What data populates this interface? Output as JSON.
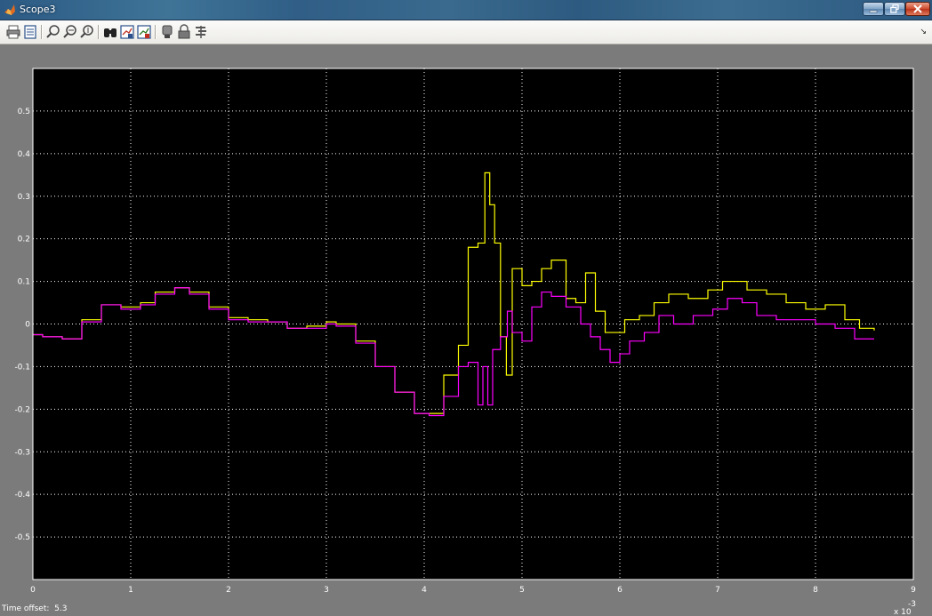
{
  "window": {
    "title": "Scope3"
  },
  "toolbar": {
    "buttons": [
      {
        "name": "print-button",
        "icon": "printer-icon"
      },
      {
        "name": "parameters-button",
        "icon": "parameters-icon"
      },
      {
        "name": "zoom-button",
        "icon": "zoom-icon"
      },
      {
        "name": "zoom-x-button",
        "icon": "zoom-x-icon"
      },
      {
        "name": "zoom-y-button",
        "icon": "zoom-y-icon"
      },
      {
        "name": "autoscale-button",
        "icon": "binoculars-icon"
      },
      {
        "name": "save-axes-button",
        "icon": "save-axes-icon"
      },
      {
        "name": "restore-axes-button",
        "icon": "restore-axes-icon"
      },
      {
        "name": "floating-scope-button",
        "icon": "floating-scope-icon"
      },
      {
        "name": "lock-axes-button",
        "icon": "lock-icon"
      },
      {
        "name": "signal-selection-button",
        "icon": "signal-selection-icon"
      }
    ],
    "corner_glyph": "↘"
  },
  "status": {
    "time_offset_label": "Time offset:",
    "time_offset_value": "5.3"
  },
  "colors": {
    "plot_background": "#000000",
    "frame_background": "#7b7b7b",
    "grid": "#ffffff",
    "series_1": "#ffff00",
    "series_2": "#ff00ff"
  },
  "chart_data": {
    "type": "line",
    "title": "",
    "xlabel": "",
    "ylabel": "",
    "x_multiplier_label": "x 10",
    "x_multiplier_exponent": "-3",
    "xlim": [
      0,
      9
    ],
    "ylim": [
      -0.6,
      0.6
    ],
    "grid": true,
    "x_ticks": [
      "0",
      "1",
      "2",
      "3",
      "4",
      "5",
      "6",
      "7",
      "8",
      "9"
    ],
    "y_ticks": [
      "0.5",
      "0.4",
      "0.3",
      "0.2",
      "0.1",
      "0",
      "-0.1",
      "-0.2",
      "-0.3",
      "-0.4",
      "-0.5"
    ],
    "y_tick_values": [
      0.5,
      0.4,
      0.3,
      0.2,
      0.1,
      0,
      -0.1,
      -0.2,
      -0.3,
      -0.4,
      -0.5
    ],
    "series": [
      {
        "color": "#ffff00",
        "x": [
          0,
          0.1,
          0.3,
          0.5,
          0.7,
          0.9,
          1.1,
          1.25,
          1.45,
          1.6,
          1.8,
          2.0,
          2.2,
          2.4,
          2.6,
          2.8,
          3.0,
          3.1,
          3.3,
          3.5,
          3.7,
          3.9,
          4.05,
          4.2,
          4.35,
          4.45,
          4.55,
          4.62,
          4.67,
          4.72,
          4.78,
          4.84,
          4.9,
          5.0,
          5.1,
          5.2,
          5.3,
          5.45,
          5.55,
          5.65,
          5.75,
          5.85,
          5.95,
          6.05,
          6.2,
          6.35,
          6.5,
          6.7,
          6.9,
          7.05,
          7.15,
          7.3,
          7.5,
          7.7,
          7.9,
          8.1,
          8.3,
          8.45,
          8.6
        ],
        "y": [
          -0.025,
          -0.03,
          -0.035,
          0.01,
          0.045,
          0.04,
          0.05,
          0.075,
          0.085,
          0.075,
          0.04,
          0.015,
          0.01,
          0.005,
          -0.01,
          -0.005,
          0.005,
          0.0,
          -0.04,
          -0.1,
          -0.16,
          -0.21,
          -0.21,
          -0.12,
          -0.05,
          0.18,
          0.19,
          0.355,
          0.28,
          0.19,
          -0.03,
          -0.12,
          0.13,
          0.09,
          0.1,
          0.13,
          0.15,
          0.06,
          0.05,
          0.12,
          0.03,
          -0.02,
          -0.02,
          0.01,
          0.02,
          0.05,
          0.07,
          0.06,
          0.08,
          0.1,
          0.1,
          0.08,
          0.07,
          0.05,
          0.035,
          0.045,
          0.01,
          -0.01,
          -0.015
        ]
      },
      {
        "color": "#ff00ff",
        "x": [
          0,
          0.1,
          0.3,
          0.5,
          0.7,
          0.9,
          1.1,
          1.25,
          1.45,
          1.6,
          1.8,
          2.0,
          2.2,
          2.4,
          2.6,
          2.8,
          3.0,
          3.1,
          3.3,
          3.5,
          3.7,
          3.9,
          4.05,
          4.2,
          4.35,
          4.45,
          4.55,
          4.6,
          4.65,
          4.7,
          4.78,
          4.85,
          4.9,
          5.0,
          5.1,
          5.2,
          5.3,
          5.45,
          5.6,
          5.7,
          5.8,
          5.9,
          6.0,
          6.1,
          6.25,
          6.4,
          6.55,
          6.75,
          6.95,
          7.1,
          7.25,
          7.4,
          7.6,
          7.8,
          8.0,
          8.2,
          8.4,
          8.6
        ],
        "y": [
          -0.025,
          -0.03,
          -0.035,
          0.005,
          0.045,
          0.035,
          0.045,
          0.07,
          0.085,
          0.07,
          0.035,
          0.01,
          0.005,
          0.005,
          -0.01,
          -0.01,
          0.0,
          -0.005,
          -0.045,
          -0.1,
          -0.16,
          -0.21,
          -0.215,
          -0.17,
          -0.1,
          -0.09,
          -0.19,
          -0.1,
          -0.19,
          -0.06,
          -0.03,
          0.03,
          -0.02,
          -0.04,
          0.04,
          0.075,
          0.065,
          0.04,
          0.0,
          -0.03,
          -0.06,
          -0.09,
          -0.07,
          -0.04,
          -0.02,
          0.02,
          0.0,
          0.02,
          0.035,
          0.06,
          0.05,
          0.02,
          0.01,
          0.01,
          0.0,
          -0.01,
          -0.035,
          -0.035
        ]
      }
    ]
  }
}
